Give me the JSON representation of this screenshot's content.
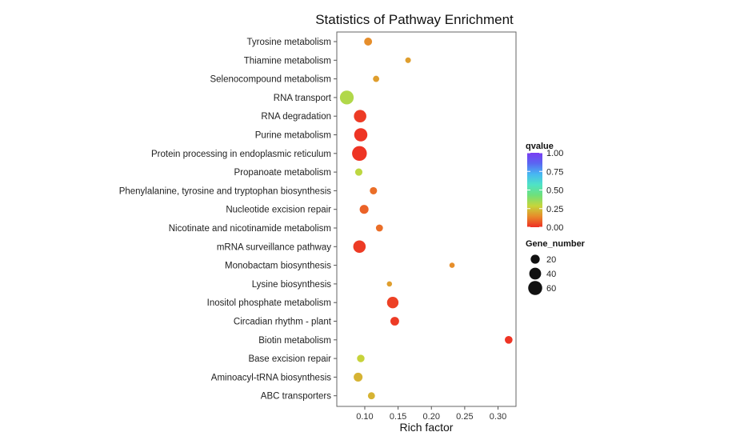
{
  "chart_data": {
    "type": "scatter",
    "title": "Statistics of Pathway Enrichment",
    "xlabel": "Rich factor",
    "ylabel": "",
    "xlim": [
      0.058,
      0.327
    ],
    "xticks": [
      0.1,
      0.15,
      0.2,
      0.25,
      0.3
    ],
    "xtick_labels": [
      "0.10",
      "0.15",
      "0.20",
      "0.25",
      "0.30"
    ],
    "grid": false,
    "categories": [
      "Tyrosine metabolism",
      "Thiamine metabolism",
      "Selenocompound metabolism",
      "RNA transport",
      "RNA degradation",
      "Purine metabolism",
      "Protein processing in endoplasmic reticulum",
      "Propanoate metabolism",
      "Phenylalanine, tyrosine and tryptophan biosynthesis",
      "Nucleotide excision repair",
      "Nicotinate and nicotinamide metabolism",
      "mRNA surveillance pathway",
      "Monobactam biosynthesis",
      "Lysine biosynthesis",
      "Inositol phosphate metabolism",
      "Circadian rhythm - plant",
      "Biotin metabolism",
      "Base excision repair",
      "Aminoacyl-tRNA biosynthesis",
      "ABC transporters"
    ],
    "points": [
      {
        "category": "Tyrosine metabolism",
        "rich_factor": 0.105,
        "qvalue": 0.15,
        "gene_number": 14
      },
      {
        "category": "Thiamine metabolism",
        "rich_factor": 0.165,
        "qvalue": 0.18,
        "gene_number": 5
      },
      {
        "category": "Selenocompound metabolism",
        "rich_factor": 0.117,
        "qvalue": 0.18,
        "gene_number": 7
      },
      {
        "category": "RNA transport",
        "rich_factor": 0.073,
        "qvalue": 0.32,
        "gene_number": 58
      },
      {
        "category": "RNA degradation",
        "rich_factor": 0.093,
        "qvalue": 0.02,
        "gene_number": 45
      },
      {
        "category": "Purine metabolism",
        "rich_factor": 0.094,
        "qvalue": 0.01,
        "gene_number": 52
      },
      {
        "category": "Protein processing in endoplasmic reticulum",
        "rich_factor": 0.092,
        "qvalue": 0.01,
        "gene_number": 68
      },
      {
        "category": "Propanoate metabolism",
        "rich_factor": 0.091,
        "qvalue": 0.3,
        "gene_number": 11
      },
      {
        "category": "Phenylalanine, tyrosine and tryptophan biosynthesis",
        "rich_factor": 0.113,
        "qvalue": 0.1,
        "gene_number": 11
      },
      {
        "category": "Nucleotide excision repair",
        "rich_factor": 0.099,
        "qvalue": 0.08,
        "gene_number": 19
      },
      {
        "category": "Nicotinate and nicotinamide metabolism",
        "rich_factor": 0.122,
        "qvalue": 0.1,
        "gene_number": 10
      },
      {
        "category": "mRNA surveillance pathway",
        "rich_factor": 0.092,
        "qvalue": 0.02,
        "gene_number": 45
      },
      {
        "category": "Monobactam biosynthesis",
        "rich_factor": 0.231,
        "qvalue": 0.15,
        "gene_number": 4
      },
      {
        "category": "Lysine biosynthesis",
        "rich_factor": 0.137,
        "qvalue": 0.18,
        "gene_number": 4
      },
      {
        "category": "Inositol phosphate metabolism",
        "rich_factor": 0.142,
        "qvalue": 0.03,
        "gene_number": 37
      },
      {
        "category": "Circadian rhythm - plant",
        "rich_factor": 0.145,
        "qvalue": 0.02,
        "gene_number": 18
      },
      {
        "category": "Biotin metabolism",
        "rich_factor": 0.316,
        "qvalue": 0.01,
        "gene_number": 13
      },
      {
        "category": "Base excision repair",
        "rich_factor": 0.094,
        "qvalue": 0.28,
        "gene_number": 12
      },
      {
        "category": "Aminoacyl-tRNA biosynthesis",
        "rich_factor": 0.09,
        "qvalue": 0.22,
        "gene_number": 19
      },
      {
        "category": "ABC transporters",
        "rich_factor": 0.11,
        "qvalue": 0.22,
        "gene_number": 10
      }
    ],
    "color_legend": {
      "title": "qvalue",
      "ticks": [
        1.0,
        0.75,
        0.5,
        0.25,
        0.0
      ],
      "tick_labels": [
        "1.00",
        "0.75",
        "0.50",
        "0.25",
        "0.00"
      ],
      "gradient": [
        "#ee2e24",
        "#e88a2a",
        "#c6d63b",
        "#6fe07a",
        "#4fe3c6",
        "#47b7f2",
        "#5a66f2",
        "#7a3cf2"
      ]
    },
    "size_legend": {
      "title": "Gene_number",
      "values": [
        20,
        40,
        60
      ],
      "labels": [
        "20",
        "40",
        "60"
      ]
    },
    "legend_position": "right"
  }
}
